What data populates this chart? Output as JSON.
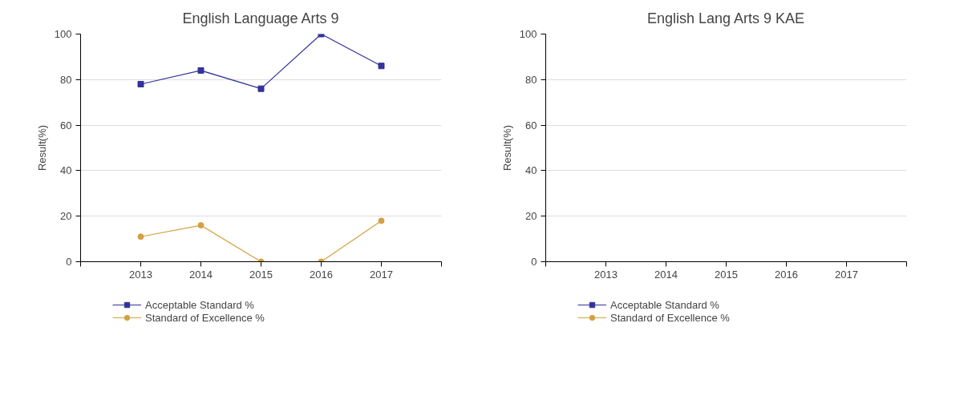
{
  "chart_data": [
    {
      "type": "line",
      "title": "English Language Arts 9",
      "ylabel": "Result(%)",
      "categories": [
        "2013",
        "2014",
        "2015",
        "2016",
        "2017"
      ],
      "ylim": [
        0,
        100
      ],
      "yticks": [
        0,
        20,
        40,
        60,
        80,
        100
      ],
      "grid": "y",
      "legend": "bottom",
      "line_style": "solid",
      "series": [
        {
          "name": "Acceptable Standard %",
          "color": "#33339a",
          "marker": "square",
          "values": [
            78,
            84,
            76,
            100,
            86
          ]
        },
        {
          "name": "Standard of Excellence %",
          "color": "#d4a040",
          "marker": "circle",
          "values": [
            11,
            16,
            0,
            0,
            18
          ]
        }
      ]
    },
    {
      "type": "line",
      "title": "English Lang Arts 9 KAE",
      "ylabel": "Result(%)",
      "categories": [
        "2013",
        "2014",
        "2015",
        "2016",
        "2017"
      ],
      "ylim": [
        0,
        100
      ],
      "yticks": [
        0,
        20,
        40,
        60,
        80,
        100
      ],
      "grid": "y",
      "legend": "bottom",
      "line_style": "solid",
      "series": [
        {
          "name": "Acceptable Standard %",
          "color": "#33339a",
          "marker": "square",
          "values": [
            null,
            null,
            null,
            null,
            null
          ]
        },
        {
          "name": "Standard of Excellence %",
          "color": "#d4a040",
          "marker": "circle",
          "values": [
            null,
            null,
            null,
            null,
            null
          ]
        }
      ]
    }
  ]
}
